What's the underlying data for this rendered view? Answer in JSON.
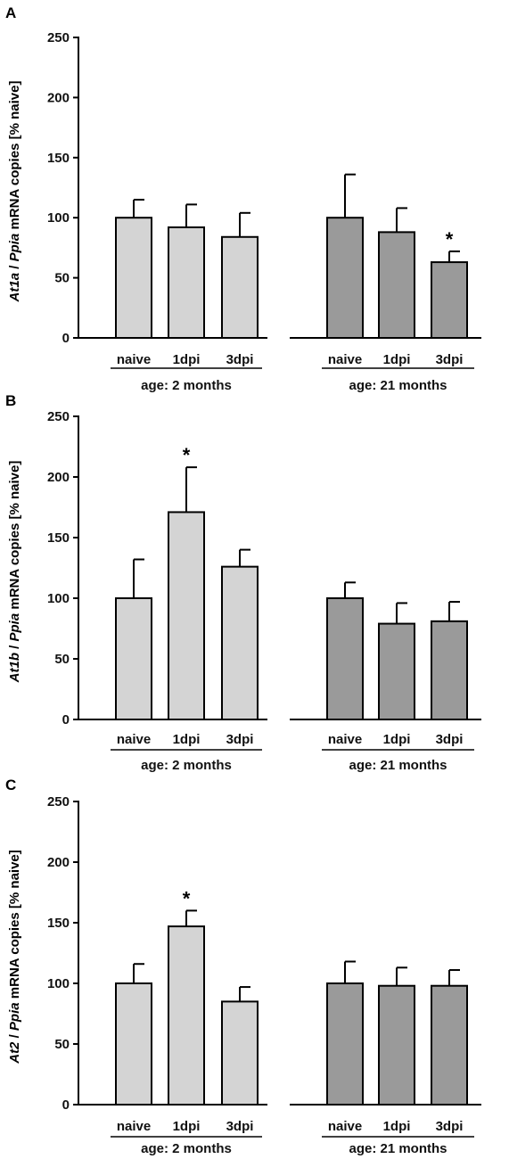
{
  "chart_data": [
    {
      "type": "bar",
      "panel": "A",
      "ylabel": {
        "gene": "At1a",
        "sep": " / ",
        "ref": "Ppia",
        "rest": " mRNA copies [% naive]"
      },
      "ylim": [
        0,
        250
      ],
      "yticks": [
        "0",
        "50",
        "100",
        "150",
        "200",
        "250"
      ],
      "groups": [
        {
          "label": "age: 2 months",
          "color": "#d4d4d4",
          "bars": [
            {
              "category": "naive",
              "value": 100,
              "error": 15,
              "significant": false
            },
            {
              "category": "1dpi",
              "value": 92,
              "error": 19,
              "significant": false
            },
            {
              "category": "3dpi",
              "value": 84,
              "error": 20,
              "significant": false
            }
          ]
        },
        {
          "label": "age: 21 months",
          "color": "#9a9a9a",
          "bars": [
            {
              "category": "naive",
              "value": 100,
              "error": 36,
              "significant": false
            },
            {
              "category": "1dpi",
              "value": 88,
              "error": 20,
              "significant": false
            },
            {
              "category": "3dpi",
              "value": 63,
              "error": 9,
              "significant": true
            }
          ]
        }
      ]
    },
    {
      "type": "bar",
      "panel": "B",
      "ylabel": {
        "gene": "At1b",
        "sep": " / ",
        "ref": "Ppia",
        "rest": " mRNA copies [% naive]"
      },
      "ylim": [
        0,
        250
      ],
      "yticks": [
        "0",
        "50",
        "100",
        "150",
        "200",
        "250"
      ],
      "groups": [
        {
          "label": "age: 2 months",
          "color": "#d4d4d4",
          "bars": [
            {
              "category": "naive",
              "value": 100,
              "error": 32,
              "significant": false
            },
            {
              "category": "1dpi",
              "value": 171,
              "error": 37,
              "significant": true
            },
            {
              "category": "3dpi",
              "value": 126,
              "error": 14,
              "significant": false
            }
          ]
        },
        {
          "label": "age: 21 months",
          "color": "#9a9a9a",
          "bars": [
            {
              "category": "naive",
              "value": 100,
              "error": 13,
              "significant": false
            },
            {
              "category": "1dpi",
              "value": 79,
              "error": 17,
              "significant": false
            },
            {
              "category": "3dpi",
              "value": 81,
              "error": 16,
              "significant": false
            }
          ]
        }
      ]
    },
    {
      "type": "bar",
      "panel": "C",
      "ylabel": {
        "gene": "At2",
        "sep": " / ",
        "ref": "Ppia",
        "rest": " mRNA copies [% naive]"
      },
      "ylim": [
        0,
        250
      ],
      "yticks": [
        "0",
        "50",
        "100",
        "150",
        "200",
        "250"
      ],
      "groups": [
        {
          "label": "age: 2 months",
          "color": "#d4d4d4",
          "bars": [
            {
              "category": "naive",
              "value": 100,
              "error": 16,
              "significant": false
            },
            {
              "category": "1dpi",
              "value": 147,
              "error": 13,
              "significant": true
            },
            {
              "category": "3dpi",
              "value": 85,
              "error": 12,
              "significant": false
            }
          ]
        },
        {
          "label": "age: 21 months",
          "color": "#9a9a9a",
          "bars": [
            {
              "category": "naive",
              "value": 100,
              "error": 18,
              "significant": false
            },
            {
              "category": "1dpi",
              "value": 98,
              "error": 15,
              "significant": false
            },
            {
              "category": "3dpi",
              "value": 98,
              "error": 13,
              "significant": false
            }
          ]
        }
      ]
    }
  ],
  "significance_marker": "*"
}
